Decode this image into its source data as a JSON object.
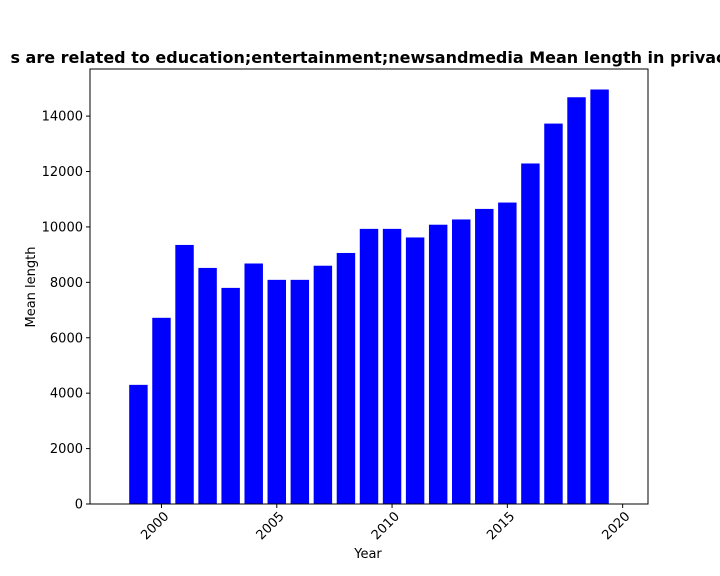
{
  "chart_data": {
    "type": "bar",
    "title": "s are related to education;entertainment;newsandmedia Mean length in privac",
    "xlabel": "Year",
    "ylabel": "Mean length",
    "bar_color": "#0000ff",
    "x": [
      1999,
      2000,
      2001,
      2002,
      2003,
      2004,
      2005,
      2006,
      2007,
      2008,
      2009,
      2010,
      2011,
      2012,
      2013,
      2014,
      2015,
      2016,
      2017,
      2018,
      2019
    ],
    "values": [
      4300,
      6720,
      9350,
      8520,
      7800,
      8680,
      8090,
      8090,
      8600,
      9060,
      9930,
      9930,
      9620,
      10080,
      10270,
      10650,
      10880,
      12290,
      13730,
      14680,
      14960
    ],
    "xlim": [
      1996.9,
      2021.1
    ],
    "ylim": [
      0,
      15700
    ],
    "xticks": [
      2000,
      2005,
      2010,
      2015,
      2020
    ],
    "yticks": [
      0,
      2000,
      4000,
      6000,
      8000,
      10000,
      12000,
      14000
    ],
    "grid": false
  }
}
